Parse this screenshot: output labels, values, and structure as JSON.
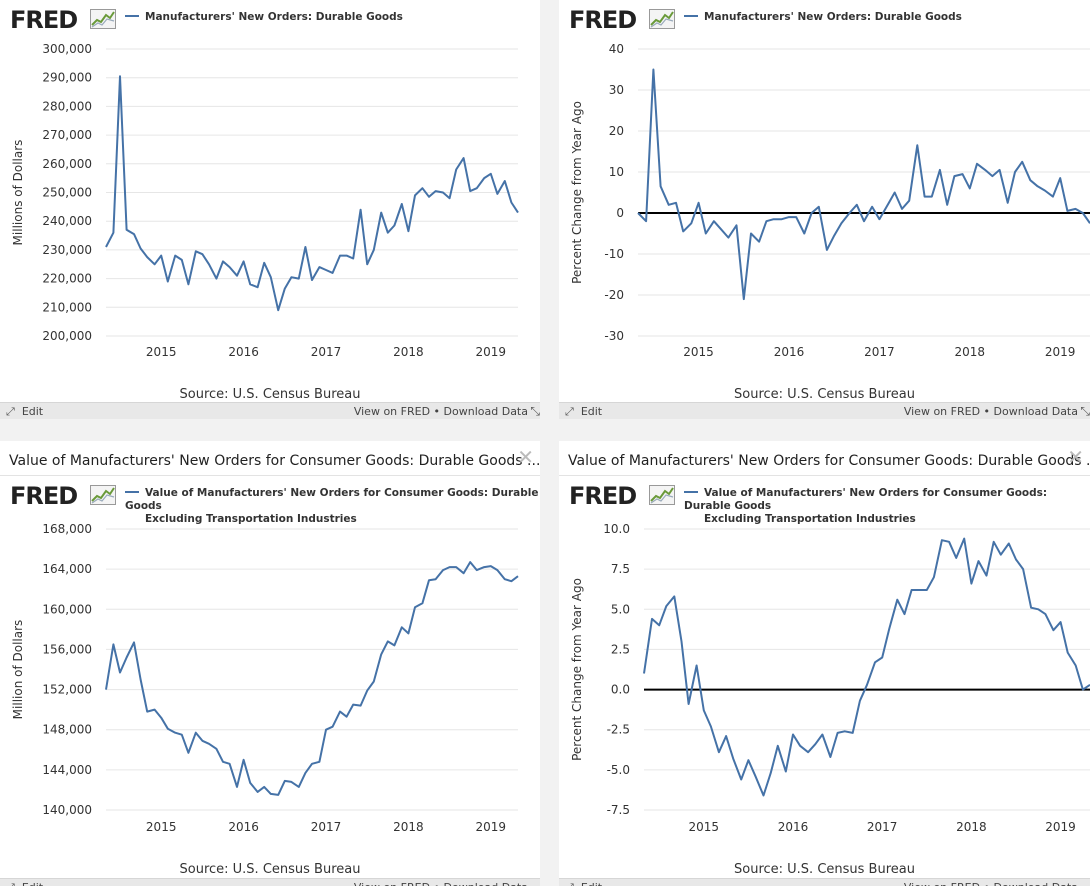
{
  "colors": {
    "line": "#4572a7",
    "plot_bg": "#ffffff",
    "grid": "#e6e6e6",
    "zero": "#000000",
    "background": "#ffffff"
  },
  "common": {
    "logo": "FRED",
    "source": "Source: U.S. Census Bureau",
    "edit": "Edit",
    "view": "View on FRED",
    "sep": "•",
    "download": "Download Data"
  },
  "panels": {
    "p1": {
      "legend1": "Manufacturers' New Orders: Durable Goods",
      "legend2": ""
    },
    "p2": {
      "legend1": "Manufacturers' New Orders: Durable Goods",
      "legend2": ""
    },
    "p3": {
      "window_title": "Value of Manufacturers' New Orders for Consumer Goods: Durable Goods ...",
      "legend1": "Value of Manufacturers' New Orders for Consumer Goods: Durable Goods",
      "legend2": "Excluding Transportation Industries"
    },
    "p4": {
      "window_title": "Value of Manufacturers' New Orders for Consumer Goods: Durable Goods ...",
      "legend1": "Value of Manufacturers' New Orders for Consumer Goods: Durable Goods",
      "legend2": "Excluding Transportation Industries"
    }
  },
  "chart_data": [
    {
      "type": "line",
      "series": [
        {
          "name": "Manufacturers' New Orders: Durable Goods",
          "x": [
            2014.33,
            2014.42,
            2014.5,
            2014.58,
            2014.67,
            2014.75,
            2014.83,
            2014.92,
            2015.0,
            2015.08,
            2015.17,
            2015.25,
            2015.33,
            2015.42,
            2015.5,
            2015.58,
            2015.67,
            2015.75,
            2015.83,
            2015.92,
            2016.0,
            2016.08,
            2016.17,
            2016.25,
            2016.33,
            2016.42,
            2016.5,
            2016.58,
            2016.67,
            2016.75,
            2016.83,
            2016.92,
            2017.0,
            2017.08,
            2017.17,
            2017.25,
            2017.33,
            2017.42,
            2017.5,
            2017.58,
            2017.67,
            2017.75,
            2017.83,
            2017.92,
            2018.0,
            2018.08,
            2018.17,
            2018.25,
            2018.33,
            2018.42,
            2018.5,
            2018.58,
            2018.67,
            2018.75,
            2018.83,
            2018.92,
            2019.0,
            2019.08,
            2019.17,
            2019.25,
            2019.33
          ],
          "values": [
            231000,
            236000,
            290500,
            237000,
            235500,
            230500,
            227500,
            225000,
            228000,
            219000,
            228000,
            226500,
            218000,
            229500,
            228500,
            225000,
            220000,
            226000,
            224000,
            221000,
            226000,
            218000,
            217000,
            225500,
            220500,
            209000,
            216500,
            220500,
            220000,
            231000,
            219500,
            224000,
            223000,
            222000,
            228000,
            228000,
            227000,
            244000,
            225000,
            230000,
            243000,
            236000,
            238500,
            246000,
            236500,
            249000,
            251500,
            248500,
            250500,
            250000,
            248000,
            258000,
            262000,
            250500,
            251500,
            255000,
            256500,
            249500,
            254000,
            246500,
            243000
          ]
        }
      ],
      "xlim": [
        2014.33,
        2019.33
      ],
      "xticks": [
        2015,
        2016,
        2017,
        2018,
        2019
      ],
      "ylim": [
        200000,
        300000
      ],
      "yticks": [
        200000,
        210000,
        220000,
        230000,
        240000,
        250000,
        260000,
        270000,
        280000,
        290000,
        300000
      ],
      "ytick_labels": [
        "200,000",
        "210,000",
        "220,000",
        "230,000",
        "240,000",
        "250,000",
        "260,000",
        "270,000",
        "280,000",
        "290,000",
        "300,000"
      ],
      "ylabel": "Millions of Dollars",
      "zero_line": false
    },
    {
      "type": "line",
      "series": [
        {
          "name": "Manufacturers' New Orders: Durable Goods",
          "x": [
            2014.33,
            2014.42,
            2014.5,
            2014.58,
            2014.67,
            2014.75,
            2014.83,
            2014.92,
            2015.0,
            2015.08,
            2015.17,
            2015.25,
            2015.33,
            2015.42,
            2015.5,
            2015.58,
            2015.67,
            2015.75,
            2015.83,
            2015.92,
            2016.0,
            2016.08,
            2016.17,
            2016.25,
            2016.33,
            2016.42,
            2016.5,
            2016.58,
            2016.67,
            2016.75,
            2016.83,
            2016.92,
            2017.0,
            2017.08,
            2017.17,
            2017.25,
            2017.33,
            2017.42,
            2017.5,
            2017.58,
            2017.67,
            2017.75,
            2017.83,
            2017.92,
            2018.0,
            2018.08,
            2018.17,
            2018.25,
            2018.33,
            2018.42,
            2018.5,
            2018.58,
            2018.67,
            2018.75,
            2018.83,
            2018.92,
            2019.0,
            2019.08,
            2019.17,
            2019.25,
            2019.33
          ],
          "values": [
            0,
            -2,
            35,
            6.5,
            2,
            2.5,
            -4.5,
            -2.5,
            2.5,
            -5,
            -2,
            -4,
            -6,
            -3,
            -21,
            -5,
            -7,
            -2,
            -1.5,
            -1.5,
            -1,
            -1,
            -5,
            0,
            1.5,
            -9,
            -5.5,
            -2.5,
            0,
            2,
            -2,
            1.5,
            -1.5,
            1.5,
            5,
            1,
            3,
            16.5,
            4,
            4,
            10.5,
            2,
            9,
            9.5,
            6,
            12,
            10.5,
            9,
            10.5,
            2.5,
            10,
            12.5,
            8,
            6.5,
            5.5,
            4,
            8.5,
            0.5,
            1,
            0,
            -2.5
          ]
        }
      ],
      "xlim": [
        2014.33,
        2019.33
      ],
      "xticks": [
        2015,
        2016,
        2017,
        2018,
        2019
      ],
      "ylim": [
        -30,
        40
      ],
      "yticks": [
        -30,
        -20,
        -10,
        0,
        10,
        20,
        30,
        40
      ],
      "ytick_labels": [
        "-30",
        "-20",
        "-10",
        "0",
        "10",
        "20",
        "30",
        "40"
      ],
      "ylabel": "Percent Change from Year Ago",
      "zero_line": true
    },
    {
      "type": "line",
      "series": [
        {
          "name": "Value of Manufacturers' New Orders for Consumer Goods: Durable Goods Excluding Transportation Industries",
          "x": [
            2014.33,
            2014.42,
            2014.5,
            2014.58,
            2014.67,
            2014.75,
            2014.83,
            2014.92,
            2015.0,
            2015.08,
            2015.17,
            2015.25,
            2015.33,
            2015.42,
            2015.5,
            2015.58,
            2015.67,
            2015.75,
            2015.83,
            2015.92,
            2016.0,
            2016.08,
            2016.17,
            2016.25,
            2016.33,
            2016.42,
            2016.5,
            2016.58,
            2016.67,
            2016.75,
            2016.83,
            2016.92,
            2017.0,
            2017.08,
            2017.17,
            2017.25,
            2017.33,
            2017.42,
            2017.5,
            2017.58,
            2017.67,
            2017.75,
            2017.83,
            2017.92,
            2018.0,
            2018.08,
            2018.17,
            2018.25,
            2018.33,
            2018.42,
            2018.5,
            2018.58,
            2018.67,
            2018.75,
            2018.83,
            2018.92,
            2019.0,
            2019.08,
            2019.17,
            2019.25,
            2019.33
          ],
          "values": [
            152000,
            156500,
            153700,
            155200,
            156700,
            153000,
            149800,
            150000,
            149200,
            148100,
            147700,
            147500,
            145700,
            147700,
            146900,
            146600,
            146100,
            144800,
            144600,
            142300,
            145000,
            142700,
            141800,
            142300,
            141600,
            141500,
            142900,
            142800,
            142300,
            143700,
            144600,
            144800,
            148000,
            148300,
            149800,
            149300,
            150500,
            150400,
            151900,
            152800,
            155500,
            156800,
            156400,
            158200,
            157600,
            160200,
            160600,
            162900,
            163000,
            163900,
            164200,
            164200,
            163600,
            164700,
            163900,
            164200,
            164300,
            163900,
            163000,
            162800,
            163300
          ]
        }
      ],
      "xlim": [
        2014.33,
        2019.33
      ],
      "xticks": [
        2015,
        2016,
        2017,
        2018,
        2019
      ],
      "ylim": [
        140000,
        168000
      ],
      "yticks": [
        140000,
        144000,
        148000,
        152000,
        156000,
        160000,
        164000,
        168000
      ],
      "ytick_labels": [
        "140,000",
        "144,000",
        "148,000",
        "152,000",
        "156,000",
        "160,000",
        "164,000",
        "168,000"
      ],
      "ylabel": "Million of Dollars",
      "zero_line": false
    },
    {
      "type": "line",
      "series": [
        {
          "name": "Value of Manufacturers' New Orders for Consumer Goods: Durable Goods Excluding Transportation Industries",
          "x": [
            2014.33,
            2014.42,
            2014.5,
            2014.58,
            2014.67,
            2014.75,
            2014.83,
            2014.92,
            2015.0,
            2015.08,
            2015.17,
            2015.25,
            2015.33,
            2015.42,
            2015.5,
            2015.58,
            2015.67,
            2015.75,
            2015.83,
            2015.92,
            2016.0,
            2016.08,
            2016.17,
            2016.25,
            2016.33,
            2016.42,
            2016.5,
            2016.58,
            2016.67,
            2016.75,
            2016.83,
            2016.92,
            2017.0,
            2017.08,
            2017.17,
            2017.25,
            2017.33,
            2017.42,
            2017.5,
            2017.58,
            2017.67,
            2017.75,
            2017.83,
            2017.92,
            2018.0,
            2018.08,
            2018.17,
            2018.25,
            2018.33,
            2018.42,
            2018.5,
            2018.58,
            2018.67,
            2018.75,
            2018.83,
            2018.92,
            2019.0,
            2019.08,
            2019.17,
            2019.25,
            2019.33
          ],
          "values": [
            1.0,
            4.4,
            4.0,
            5.2,
            5.8,
            3.0,
            -0.9,
            1.5,
            -1.3,
            -2.3,
            -3.9,
            -2.9,
            -4.3,
            -5.6,
            -4.4,
            -5.4,
            -6.6,
            -5.2,
            -3.5,
            -5.1,
            -2.8,
            -3.5,
            -3.9,
            -3.4,
            -2.8,
            -4.2,
            -2.7,
            -2.6,
            -2.7,
            -0.7,
            0.3,
            1.7,
            2.0,
            3.8,
            5.6,
            4.7,
            6.2,
            6.2,
            6.2,
            7.0,
            9.3,
            9.2,
            8.2,
            9.4,
            6.6,
            8.0,
            7.1,
            9.2,
            8.4,
            9.1,
            8.1,
            7.5,
            5.1,
            5.0,
            4.7,
            3.7,
            4.2,
            2.3,
            1.5,
            0.0,
            0.3
          ]
        }
      ],
      "xlim": [
        2014.33,
        2019.33
      ],
      "xticks": [
        2015,
        2016,
        2017,
        2018,
        2019
      ],
      "ylim": [
        -7.5,
        10.0
      ],
      "yticks": [
        -7.5,
        -5.0,
        -2.5,
        0.0,
        2.5,
        5.0,
        7.5,
        10.0
      ],
      "ytick_labels": [
        "-7.5",
        "-5.0",
        "-2.5",
        "0.0",
        "2.5",
        "5.0",
        "7.5",
        "10.0"
      ],
      "ylabel": "Percent Change from Year Ago",
      "zero_line": true
    }
  ]
}
